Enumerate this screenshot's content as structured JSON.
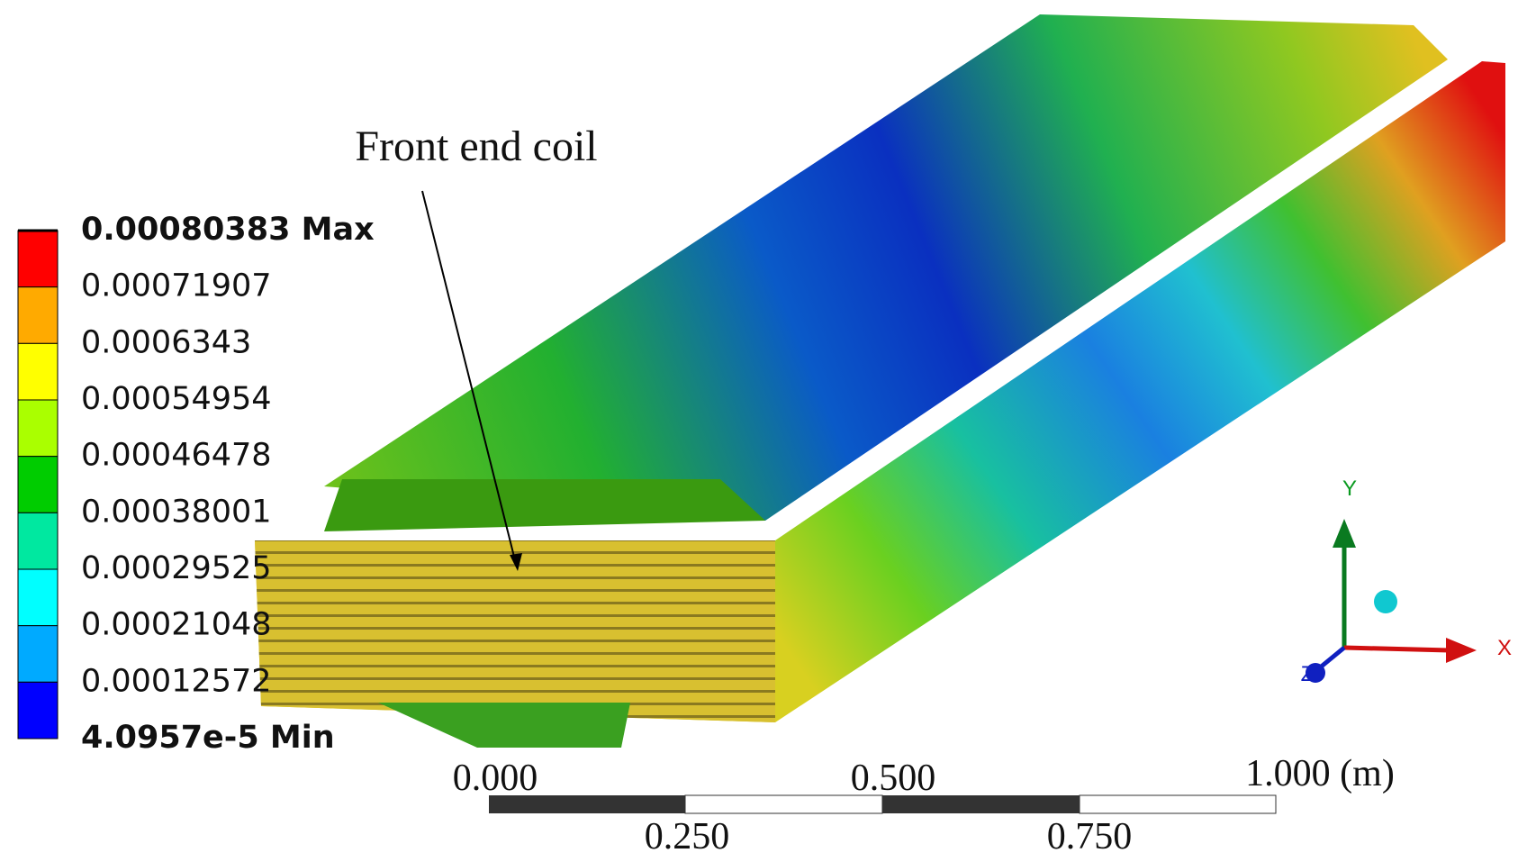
{
  "annotation": "Front end coil",
  "legend": {
    "labels": [
      "0.00080383 Max",
      "0.00071907",
      "0.0006343",
      "0.00054954",
      "0.00046478",
      "0.00038001",
      "0.00029525",
      "0.00021048",
      "0.00012572",
      "4.0957e-5 Min"
    ],
    "colors": [
      "#ff0000",
      "#ffaa00",
      "#ffff00",
      "#aaff00",
      "#00cc00",
      "#00e8a0",
      "#00ffff",
      "#00aaff",
      "#0000ff"
    ]
  },
  "scale_bar": {
    "labels": [
      "0.000",
      "0.250",
      "0.500",
      "0.750",
      "1.000 (m)"
    ]
  },
  "triad": {
    "x": "X",
    "y": "Y",
    "z": "Z"
  }
}
